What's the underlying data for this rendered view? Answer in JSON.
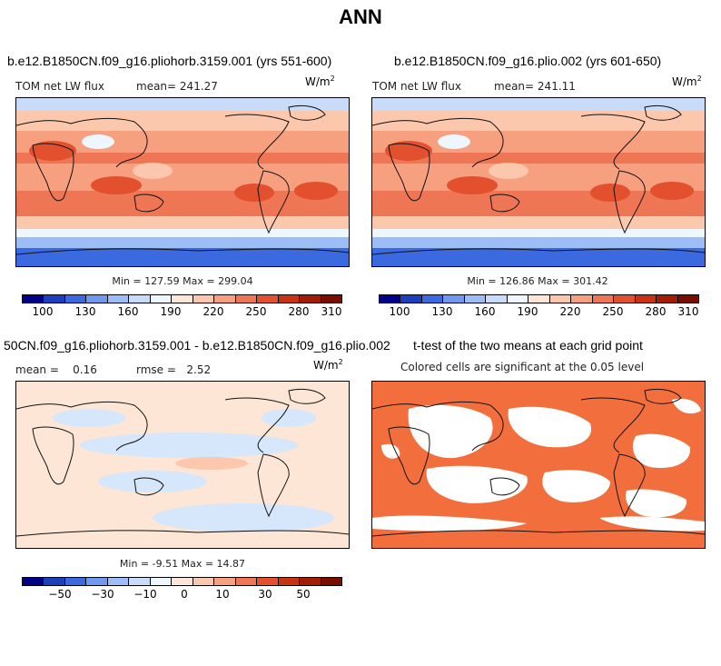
{
  "figure_title": "ANN",
  "unit_base": "W/m",
  "unit_exp": "2",
  "chart_data": [
    {
      "type": "heatmap",
      "title": "b.e12.B1850CN.f09_g16.pliohorb.3159.001 (yrs 551-600)",
      "variable": "TOM net LW flux",
      "mean_label": "mean=",
      "mean": "241.27",
      "min_max": "Min = 127.59 Max = 299.04",
      "colorbar_ticks": [
        "100",
        "130",
        "160",
        "190",
        "220",
        "250",
        "280",
        "310"
      ]
    },
    {
      "type": "heatmap",
      "title": "b.e12.B1850CN.f09_g16.plio.002 (yrs 601-650)",
      "variable": "TOM net LW flux",
      "mean_label": "mean=",
      "mean": "241.11",
      "min_max": "Min = 126.86 Max = 301.42",
      "colorbar_ticks": [
        "100",
        "130",
        "160",
        "190",
        "220",
        "250",
        "280",
        "310"
      ]
    },
    {
      "type": "heatmap",
      "title": "50CN.f09_g16.pliohorb.3159.001 - b.e12.B1850CN.f09_g16.plio.002",
      "mean_label": "mean =",
      "mean": "0.16",
      "rmse_label": "rmse =",
      "rmse": "2.52",
      "min_max": "Min =   -9.51 Max =   14.87",
      "colorbar_ticks": [
        "−50",
        "−30",
        "−10",
        "0",
        "10",
        "30",
        "50"
      ]
    },
    {
      "type": "heatmap",
      "title": "t-test of the two means at each grid point",
      "subtitle": "Colored cells are significant at the 0.05 level"
    }
  ],
  "colors": {
    "abs_scale": [
      "#00008b",
      "#1c3fbd",
      "#3b69e0",
      "#6f98ee",
      "#9cbdf5",
      "#c8dcfa",
      "#eef6ff",
      "#fde6d6",
      "#fbc7ad",
      "#f6a080",
      "#ef7654",
      "#e3502e",
      "#c93312",
      "#a11d05",
      "#7a0d00"
    ],
    "diff_scale": [
      "#00008b",
      "#1c3fbd",
      "#3b69e0",
      "#6f98ee",
      "#9cbdf5",
      "#c8dcfa",
      "#eef6ff",
      "#fde6d6",
      "#fbc7ad",
      "#f6a080",
      "#ef7654",
      "#e3502e",
      "#c93312",
      "#a11d05",
      "#7a0d00"
    ],
    "significant": "#f26f3d",
    "land_line": "#111111"
  }
}
